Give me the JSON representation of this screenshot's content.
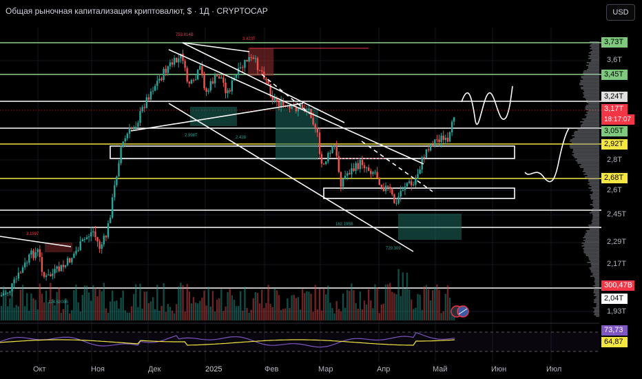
{
  "title": "Общая рыночная капитализация криптовалют, $ · 1Д · CRYPTOCAP",
  "currency": "USD",
  "chart_data": {
    "type": "candlestick",
    "x_ticks": [
      "Окт",
      "Ноя",
      "Дек",
      "2025",
      "Фев",
      "Мар",
      "Апр",
      "Май",
      "Июн",
      "Июл"
    ],
    "y_ticks": [
      "3,6T",
      "2,8T",
      "2,6T",
      "2,45T",
      "2,29T",
      "2,17T",
      "1,93T"
    ],
    "levels": [
      {
        "label": "3,73T",
        "color": "#7ec97e",
        "line": "#8fd38f"
      },
      {
        "label": "3,45T",
        "color": "#7ec97e",
        "line": "#8fd38f"
      },
      {
        "label": "3,24T",
        "color": "#e0e0e0",
        "line": "#ffffff"
      },
      {
        "label": "3,05T",
        "color": "#7ec97e",
        "line": "#ffffff"
      },
      {
        "label": "2,92T",
        "color": "#f5e642",
        "line": "#f5e642"
      },
      {
        "label": "2,68T",
        "color": "#f5e642",
        "line": "#f5e642"
      },
      {
        "label": "2,04T",
        "color": "#ffffff",
        "line": "#ffffff"
      }
    ],
    "last_price": {
      "label": "3,17T",
      "countdown": "18:17:07",
      "color": "#f23645"
    },
    "volume_last": {
      "label": "300,47B",
      "color": "#f23645"
    },
    "rsi": {
      "value": "73,73",
      "ma": "64,87",
      "value_color": "#7e57c2",
      "ma_color": "#f5e642"
    },
    "annotations": [
      "753.814B",
      "3.423T",
      "3.1597",
      "2.998T",
      "2.428",
      "162.195B",
      "729.309",
      "124.5200B"
    ],
    "up_color": "#26a69a",
    "down_color": "#ef5350"
  }
}
